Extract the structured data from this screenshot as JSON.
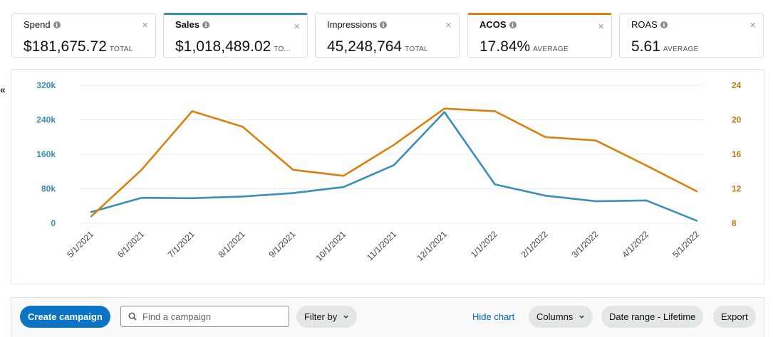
{
  "colors": {
    "sales": "#3a8fb7",
    "acos": "#d9800f",
    "tick_left": "#3a8fb7",
    "tick_right": "#c07a14",
    "grid": "#ececec"
  },
  "metrics": [
    {
      "label": "Spend",
      "value": "$181,675.72",
      "suffix": "TOTAL",
      "selected": false
    },
    {
      "label": "Sales",
      "value": "$1,018,489.02",
      "suffix": "TO...",
      "selected": true,
      "accent": "#3a8fb7"
    },
    {
      "label": "Impressions",
      "value": "45,248,764",
      "suffix": "TOTAL",
      "selected": false
    },
    {
      "label": "ACOS",
      "value": "17.84%",
      "suffix": "AVERAGE",
      "selected": true,
      "accent": "#d9800f"
    },
    {
      "label": "ROAS",
      "value": "5.61",
      "suffix": "AVERAGE",
      "selected": false
    }
  ],
  "collapse_glyph": "«",
  "chart_data": {
    "type": "line",
    "x": [
      "5/1/2021",
      "6/1/2021",
      "7/1/2021",
      "8/1/2021",
      "9/1/2021",
      "10/1/2021",
      "11/1/2021",
      "12/1/2021",
      "1/1/2022",
      "2/1/2022",
      "3/1/2022",
      "4/1/2022",
      "5/1/2022"
    ],
    "series": [
      {
        "name": "Sales",
        "axis": "left",
        "values": [
          26000,
          59000,
          58000,
          62000,
          70000,
          84000,
          135000,
          258000,
          90000,
          64000,
          51000,
          53000,
          6000
        ]
      },
      {
        "name": "ACOS",
        "axis": "right",
        "values": [
          8.8,
          14.2,
          21.0,
          19.2,
          14.2,
          13.5,
          17.1,
          21.3,
          21.0,
          18.0,
          17.6,
          14.7,
          11.7
        ]
      }
    ],
    "yleft": {
      "range": [
        0,
        320000
      ],
      "ticks": [
        0,
        80000,
        160000,
        240000,
        320000
      ],
      "tick_labels": [
        "0",
        "80k",
        "160k",
        "240k",
        "320k"
      ]
    },
    "yright": {
      "range": [
        8,
        24
      ],
      "ticks": [
        8,
        12,
        16,
        20,
        24
      ],
      "tick_labels": [
        "8",
        "12",
        "16",
        "20",
        "24"
      ]
    },
    "grid": true
  },
  "toolbar": {
    "create_label": "Create campaign",
    "search_placeholder": "Find a campaign",
    "filter_label": "Filter by",
    "hide_chart_label": "Hide chart",
    "columns_label": "Columns",
    "date_range_label": "Date range - Lifetime",
    "export_label": "Export"
  }
}
